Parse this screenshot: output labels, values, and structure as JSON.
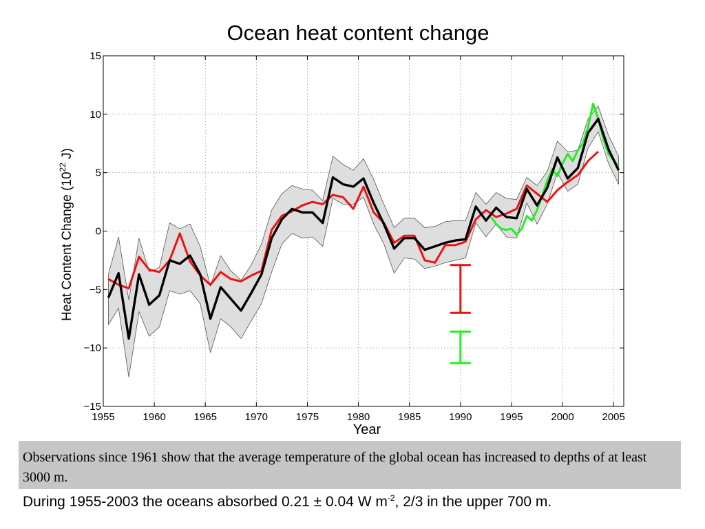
{
  "title": "Ocean heat content change",
  "caption": "Observations since 1961 show that the average temperature of the global ocean has increased to depths of at least 3000 m.",
  "footnote": {
    "before": "During 1955-2003 the oceans absorbed 0.21 ± 0.04 W m",
    "sup": "-2",
    "after": ", 2/3 in the upper 700 m."
  },
  "colors": {
    "black_series": "#000000",
    "red_series": "#ee1111",
    "green_series": "#22ee22",
    "uncertainty_band": "#dedede",
    "caption_box": "#c6c6c6"
  },
  "chart_data": {
    "type": "line",
    "title": "Ocean heat content change",
    "xlabel": "Year",
    "ylabel": "Heat Content Change (10^22 J)",
    "ylabel_parts": {
      "main": "Heat Content Change (10",
      "sup": "22",
      "end": " J)"
    },
    "xlim": [
      1955,
      2006
    ],
    "ylim": [
      -15,
      15
    ],
    "xticks": [
      1955,
      1960,
      1965,
      1970,
      1975,
      1980,
      1985,
      1990,
      1995,
      2000,
      2005
    ],
    "yticks": [
      15,
      10,
      5,
      0,
      -5,
      -10,
      -15
    ],
    "ytick_labels": [
      "15",
      "10",
      "5",
      "0",
      "−5",
      "−10",
      "−15"
    ],
    "grid": true,
    "series": [
      {
        "color": "black",
        "x": [
          1955.5,
          1956.5,
          1957.5,
          1958.5,
          1959.5,
          1960.5,
          1961.5,
          1962.5,
          1963.5,
          1964.5,
          1965.5,
          1966.5,
          1967.5,
          1968.5,
          1969.5,
          1970.5,
          1971.5,
          1972.5,
          1973.5,
          1974.5,
          1975.5,
          1976.5,
          1977.5,
          1978.5,
          1979.5,
          1980.5,
          1981.5,
          1982.5,
          1983.5,
          1984.5,
          1985.5,
          1986.5,
          1987.5,
          1988.5,
          1989.5,
          1990.5,
          1991.5,
          1992.5,
          1993.5,
          1994.5,
          1995.5,
          1996.5,
          1997.5,
          1998.5,
          1999.5,
          2000.5,
          2001.5,
          2002.5,
          2003.5,
          2004.5,
          2005.5
        ],
        "y": [
          -5.7,
          -3.6,
          -9.2,
          -3.7,
          -6.3,
          -5.5,
          -2.5,
          -2.8,
          -2.1,
          -3.7,
          -7.5,
          -4.8,
          -5.8,
          -6.8,
          -5.3,
          -3.7,
          -0.6,
          1.0,
          1.9,
          1.6,
          1.6,
          0.7,
          4.6,
          4.0,
          3.8,
          4.5,
          2.4,
          0.6,
          -1.5,
          -0.6,
          -0.6,
          -1.6,
          -1.3,
          -1.0,
          -0.8,
          -0.7,
          2.1,
          0.9,
          2.0,
          1.2,
          1.1,
          3.6,
          2.2,
          3.7,
          6.3,
          4.5,
          5.4,
          8.4,
          9.6,
          7.0,
          5.2
        ]
      },
      {
        "color": "red",
        "x": [
          1955.5,
          1956.5,
          1957.5,
          1958.5,
          1959.5,
          1960.5,
          1961.5,
          1962.5,
          1963.5,
          1964.5,
          1965.5,
          1966.5,
          1967.5,
          1968.5,
          1969.5,
          1970.5,
          1971.5,
          1972.5,
          1973.5,
          1974.5,
          1975.5,
          1976.5,
          1977.5,
          1978.5,
          1979.5,
          1980.5,
          1981.5,
          1982.5,
          1983.5,
          1984.5,
          1985.5,
          1986.5,
          1987.5,
          1988.5,
          1989.5,
          1990.5,
          1991.5,
          1992.5,
          1993.5,
          1994.5,
          1995.5,
          1996.5,
          1997.5,
          1998.5,
          1999.5,
          2000.5,
          2001.5,
          2002.5,
          2003.5
        ],
        "y": [
          -4.1,
          -4.6,
          -4.9,
          -2.2,
          -3.3,
          -3.5,
          -2.5,
          -0.2,
          -2.6,
          -3.8,
          -4.6,
          -3.5,
          -4.1,
          -4.3,
          -3.8,
          -3.4,
          0.1,
          1.3,
          1.7,
          2.2,
          2.5,
          2.3,
          3.1,
          2.9,
          1.9,
          3.8,
          1.6,
          0.7,
          -1.0,
          -0.4,
          -0.4,
          -2.5,
          -2.7,
          -1.2,
          -1.2,
          -0.9,
          1.0,
          1.8,
          1.2,
          1.5,
          1.9,
          3.9,
          3.2,
          2.5,
          3.5,
          4.2,
          4.8,
          6.0,
          6.8
        ]
      },
      {
        "color": "green",
        "x": [
          1993.0,
          1993.5,
          1994.0,
          1994.5,
          1995.0,
          1995.5,
          1996.0,
          1996.5,
          1997.0,
          1997.5,
          1998.0,
          1998.5,
          1999.0,
          1999.5,
          2000.0,
          2000.5,
          2001.0,
          2001.5,
          2002.0,
          2002.5,
          2003.0,
          2003.5,
          2004.0,
          2004.5,
          2005.0,
          2005.5
        ],
        "y": [
          1.2,
          0.6,
          0.2,
          0.1,
          0.2,
          -0.3,
          0.2,
          1.3,
          0.9,
          1.8,
          3.0,
          4.3,
          5.3,
          4.7,
          5.8,
          6.6,
          6.0,
          6.9,
          7.5,
          8.9,
          10.9,
          9.6,
          7.9,
          6.6,
          6.1,
          5.5
        ]
      }
    ],
    "band": {
      "x": [
        1955.5,
        1956.5,
        1957.5,
        1958.5,
        1959.5,
        1960.5,
        1961.5,
        1962.5,
        1963.5,
        1964.5,
        1965.5,
        1966.5,
        1967.5,
        1968.5,
        1969.5,
        1970.5,
        1971.5,
        1972.5,
        1973.5,
        1974.5,
        1975.5,
        1976.5,
        1977.5,
        1978.5,
        1979.5,
        1980.5,
        1981.5,
        1982.5,
        1983.5,
        1984.5,
        1985.5,
        1986.5,
        1987.5,
        1988.5,
        1989.5,
        1990.5,
        1991.5,
        1992.5,
        1993.5,
        1994.5,
        1995.5,
        1996.5,
        1997.5,
        1998.5,
        1999.5,
        2000.5,
        2001.5,
        2002.5,
        2003.5,
        2004.5,
        2005.5
      ],
      "upper": [
        -3.7,
        -0.5,
        -5.9,
        -0.6,
        -3.5,
        -3.1,
        0.7,
        0.2,
        0.6,
        -1.3,
        -4.7,
        -2.1,
        -3.4,
        -4.2,
        -2.9,
        -1.1,
        1.8,
        3.2,
        3.9,
        3.6,
        3.5,
        2.6,
        6.4,
        5.7,
        5.2,
        6.2,
        4.4,
        2.3,
        0.3,
        1.1,
        1.1,
        0.3,
        0.4,
        0.8,
        0.9,
        0.9,
        3.3,
        2.3,
        3.3,
        2.8,
        2.7,
        4.6,
        3.9,
        5.1,
        7.7,
        6.8,
        6.9,
        9.6,
        10.7,
        8.2,
        6.4
      ],
      "lower": [
        -8.0,
        -6.6,
        -12.5,
        -6.9,
        -9.0,
        -8.2,
        -5.1,
        -5.4,
        -5.1,
        -6.2,
        -10.4,
        -7.5,
        -8.2,
        -9.2,
        -7.7,
        -6.2,
        -3.5,
        -1.1,
        -0.2,
        -0.6,
        -0.5,
        -1.3,
        2.8,
        2.3,
        2.3,
        2.9,
        0.6,
        -1.1,
        -3.6,
        -2.3,
        -2.4,
        -3.2,
        -3.0,
        -2.7,
        -2.5,
        -2.3,
        0.7,
        -0.5,
        0.6,
        -0.5,
        -0.6,
        2.4,
        0.6,
        2.3,
        5.0,
        3.4,
        4.0,
        7.1,
        8.5,
        5.8,
        4.0
      ]
    },
    "error_bars": [
      {
        "color": "red",
        "x": 1990.0,
        "low": -7.0,
        "high": -2.9
      },
      {
        "color": "green",
        "x": 1990.0,
        "low": -11.3,
        "high": -8.6
      }
    ]
  }
}
